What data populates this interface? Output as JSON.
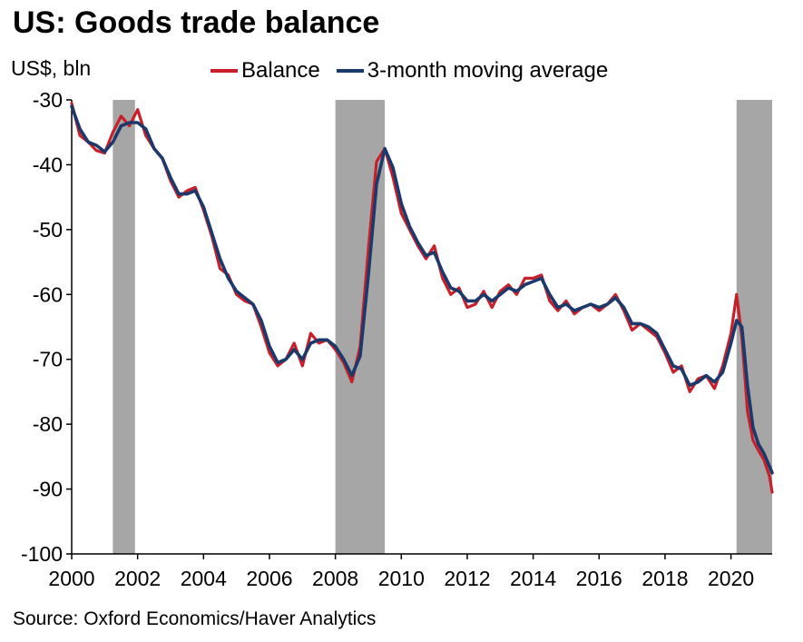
{
  "title": "US: Goods trade balance",
  "source": "Source: Oxford Economics/Haver Analytics",
  "chart_data": {
    "type": "line",
    "ylabel": "US$, bln",
    "xlabel": "",
    "xlim": [
      2000,
      2021.25
    ],
    "ylim": [
      -100,
      -30
    ],
    "y_ticks": [
      -30,
      -40,
      -50,
      -60,
      -70,
      -80,
      -90,
      -100
    ],
    "x_ticks": [
      2000,
      2002,
      2004,
      2006,
      2008,
      2010,
      2012,
      2014,
      2016,
      2018,
      2020
    ],
    "y_tick_labels": [
      "-30",
      "-40",
      "-50",
      "-60",
      "-70",
      "-80",
      "-90",
      "-100"
    ],
    "x_tick_labels": [
      "2000",
      "2002",
      "2004",
      "2006",
      "2008",
      "2010",
      "2012",
      "2014",
      "2016",
      "2018",
      "2020"
    ],
    "grid": false,
    "legend_position": "top",
    "recession_shading": [
      {
        "start": 2001.25,
        "end": 2001.92
      },
      {
        "start": 2008.0,
        "end": 2009.5
      },
      {
        "start": 2020.17,
        "end": 2021.25
      }
    ],
    "series": [
      {
        "name": "Balance",
        "color": "#c8202b",
        "points": [
          [
            2000.0,
            -30.5
          ],
          [
            2000.25,
            -35.5
          ],
          [
            2000.5,
            -36.5
          ],
          [
            2000.75,
            -37.8
          ],
          [
            2001.0,
            -38.2
          ],
          [
            2001.25,
            -35.0
          ],
          [
            2001.5,
            -32.5
          ],
          [
            2001.75,
            -34.0
          ],
          [
            2002.0,
            -31.5
          ],
          [
            2002.25,
            -35.5
          ],
          [
            2002.5,
            -37.5
          ],
          [
            2002.75,
            -39.0
          ],
          [
            2003.0,
            -42.5
          ],
          [
            2003.25,
            -45.0
          ],
          [
            2003.5,
            -44.0
          ],
          [
            2003.75,
            -43.5
          ],
          [
            2004.0,
            -47.0
          ],
          [
            2004.25,
            -51.0
          ],
          [
            2004.5,
            -56.0
          ],
          [
            2004.75,
            -57.0
          ],
          [
            2005.0,
            -60.0
          ],
          [
            2005.25,
            -61.0
          ],
          [
            2005.5,
            -61.5
          ],
          [
            2005.75,
            -65.0
          ],
          [
            2006.0,
            -69.0
          ],
          [
            2006.25,
            -71.0
          ],
          [
            2006.5,
            -70.0
          ],
          [
            2006.75,
            -67.5
          ],
          [
            2007.0,
            -71.0
          ],
          [
            2007.25,
            -66.0
          ],
          [
            2007.5,
            -67.5
          ],
          [
            2007.75,
            -67.0
          ],
          [
            2008.0,
            -68.5
          ],
          [
            2008.25,
            -70.5
          ],
          [
            2008.5,
            -73.5
          ],
          [
            2008.75,
            -68.0
          ],
          [
            2009.0,
            -53.0
          ],
          [
            2009.25,
            -39.5
          ],
          [
            2009.5,
            -37.5
          ],
          [
            2009.75,
            -42.0
          ],
          [
            2010.0,
            -47.5
          ],
          [
            2010.25,
            -50.0
          ],
          [
            2010.5,
            -52.5
          ],
          [
            2010.75,
            -54.5
          ],
          [
            2011.0,
            -52.5
          ],
          [
            2011.25,
            -57.5
          ],
          [
            2011.5,
            -60.0
          ],
          [
            2011.75,
            -59.0
          ],
          [
            2012.0,
            -62.0
          ],
          [
            2012.25,
            -61.5
          ],
          [
            2012.5,
            -59.5
          ],
          [
            2012.75,
            -62.0
          ],
          [
            2013.0,
            -59.5
          ],
          [
            2013.25,
            -58.5
          ],
          [
            2013.5,
            -60.0
          ],
          [
            2013.75,
            -57.5
          ],
          [
            2014.0,
            -57.5
          ],
          [
            2014.25,
            -57.0
          ],
          [
            2014.5,
            -61.0
          ],
          [
            2014.75,
            -62.5
          ],
          [
            2015.0,
            -61.0
          ],
          [
            2015.25,
            -63.0
          ],
          [
            2015.5,
            -62.0
          ],
          [
            2015.75,
            -61.5
          ],
          [
            2016.0,
            -62.5
          ],
          [
            2016.25,
            -61.5
          ],
          [
            2016.5,
            -60.0
          ],
          [
            2016.75,
            -62.5
          ],
          [
            2017.0,
            -65.5
          ],
          [
            2017.25,
            -64.5
          ],
          [
            2017.5,
            -65.5
          ],
          [
            2017.75,
            -66.5
          ],
          [
            2018.0,
            -69.0
          ],
          [
            2018.25,
            -72.0
          ],
          [
            2018.5,
            -71.0
          ],
          [
            2018.75,
            -75.0
          ],
          [
            2019.0,
            -73.0
          ],
          [
            2019.25,
            -72.5
          ],
          [
            2019.5,
            -74.5
          ],
          [
            2019.75,
            -71.0
          ],
          [
            2020.0,
            -66.0
          ],
          [
            2020.17,
            -60.0
          ],
          [
            2020.33,
            -66.5
          ],
          [
            2020.5,
            -78.0
          ],
          [
            2020.67,
            -82.5
          ],
          [
            2020.83,
            -84.0
          ],
          [
            2021.0,
            -85.5
          ],
          [
            2021.17,
            -88.0
          ],
          [
            2021.25,
            -90.5
          ]
        ]
      },
      {
        "name": "3-month moving average",
        "color": "#1b3a6b",
        "points": [
          [
            2000.0,
            -31.0
          ],
          [
            2000.25,
            -34.5
          ],
          [
            2000.5,
            -36.5
          ],
          [
            2000.75,
            -37.0
          ],
          [
            2001.0,
            -38.0
          ],
          [
            2001.25,
            -36.5
          ],
          [
            2001.5,
            -34.0
          ],
          [
            2001.75,
            -33.5
          ],
          [
            2002.0,
            -33.5
          ],
          [
            2002.25,
            -34.5
          ],
          [
            2002.5,
            -37.5
          ],
          [
            2002.75,
            -39.0
          ],
          [
            2003.0,
            -42.0
          ],
          [
            2003.25,
            -44.5
          ],
          [
            2003.5,
            -44.5
          ],
          [
            2003.75,
            -44.0
          ],
          [
            2004.0,
            -46.5
          ],
          [
            2004.25,
            -50.5
          ],
          [
            2004.5,
            -54.5
          ],
          [
            2004.75,
            -57.5
          ],
          [
            2005.0,
            -59.5
          ],
          [
            2005.25,
            -60.5
          ],
          [
            2005.5,
            -61.5
          ],
          [
            2005.75,
            -64.0
          ],
          [
            2006.0,
            -68.0
          ],
          [
            2006.25,
            -70.5
          ],
          [
            2006.5,
            -70.0
          ],
          [
            2006.75,
            -68.5
          ],
          [
            2007.0,
            -70.0
          ],
          [
            2007.25,
            -67.5
          ],
          [
            2007.5,
            -67.0
          ],
          [
            2007.75,
            -67.0
          ],
          [
            2008.0,
            -68.0
          ],
          [
            2008.25,
            -70.0
          ],
          [
            2008.5,
            -72.5
          ],
          [
            2008.75,
            -69.5
          ],
          [
            2009.0,
            -57.0
          ],
          [
            2009.25,
            -43.0
          ],
          [
            2009.5,
            -37.5
          ],
          [
            2009.75,
            -40.5
          ],
          [
            2010.0,
            -46.0
          ],
          [
            2010.25,
            -49.5
          ],
          [
            2010.5,
            -52.0
          ],
          [
            2010.75,
            -54.0
          ],
          [
            2011.0,
            -53.5
          ],
          [
            2011.25,
            -56.5
          ],
          [
            2011.5,
            -59.0
          ],
          [
            2011.75,
            -59.5
          ],
          [
            2012.0,
            -61.0
          ],
          [
            2012.25,
            -61.0
          ],
          [
            2012.5,
            -60.0
          ],
          [
            2012.75,
            -61.0
          ],
          [
            2013.0,
            -60.0
          ],
          [
            2013.25,
            -59.0
          ],
          [
            2013.5,
            -59.5
          ],
          [
            2013.75,
            -58.5
          ],
          [
            2014.0,
            -58.0
          ],
          [
            2014.25,
            -57.5
          ],
          [
            2014.5,
            -60.0
          ],
          [
            2014.75,
            -62.0
          ],
          [
            2015.0,
            -61.5
          ],
          [
            2015.25,
            -62.5
          ],
          [
            2015.5,
            -62.0
          ],
          [
            2015.75,
            -61.5
          ],
          [
            2016.0,
            -62.0
          ],
          [
            2016.25,
            -61.5
          ],
          [
            2016.5,
            -60.5
          ],
          [
            2016.75,
            -62.0
          ],
          [
            2017.0,
            -64.5
          ],
          [
            2017.25,
            -64.5
          ],
          [
            2017.5,
            -65.0
          ],
          [
            2017.75,
            -66.0
          ],
          [
            2018.0,
            -68.5
          ],
          [
            2018.25,
            -71.0
          ],
          [
            2018.5,
            -71.5
          ],
          [
            2018.75,
            -74.0
          ],
          [
            2019.0,
            -73.5
          ],
          [
            2019.25,
            -72.5
          ],
          [
            2019.5,
            -73.5
          ],
          [
            2019.75,
            -72.0
          ],
          [
            2020.0,
            -67.5
          ],
          [
            2020.17,
            -64.0
          ],
          [
            2020.33,
            -65.0
          ],
          [
            2020.5,
            -74.0
          ],
          [
            2020.67,
            -80.5
          ],
          [
            2020.83,
            -83.0
          ],
          [
            2021.0,
            -84.5
          ],
          [
            2021.17,
            -86.5
          ],
          [
            2021.25,
            -87.5
          ]
        ]
      }
    ]
  }
}
